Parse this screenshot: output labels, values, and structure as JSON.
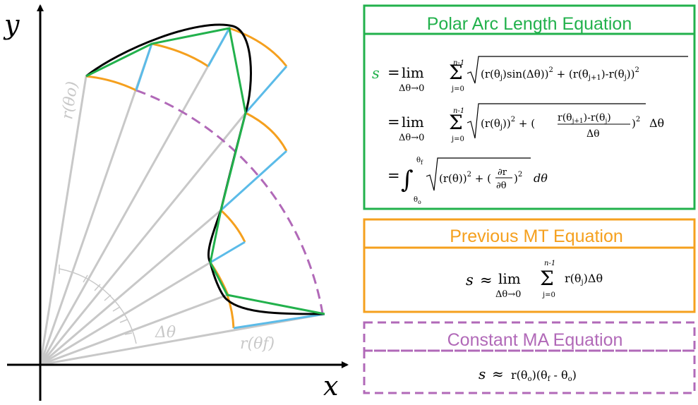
{
  "colors": {
    "green": "#22b14c",
    "orange": "#f5a01e",
    "blue": "#5bbbe8",
    "purple": "#b169b8",
    "gray": "#c8c8c8",
    "black": "#000000"
  },
  "plot": {
    "x_axis_label": "x",
    "y_axis_label": "y",
    "r_theta_o_label": "r(θo)",
    "r_theta_f_label": "r(θf)",
    "delta_theta_label": "Δθ"
  },
  "boxes": [
    {
      "title": "Polar Arc Length Equation",
      "color": "#22b14c",
      "style": "solid",
      "lines": [
        "s = lim(Δθ→0) Σ(j=0..n-1) √[ (r(θj) sin(Δθ))² + (r(θj+1) - r(θj))² ]",
        "= lim(Δθ→0) Σ(j=0..n-1) √[ (r(θj))² + ((r(θj+1) - r(θj)) / Δθ)² ] Δθ",
        "= ∫(θo..θf) √[ (r(θ))² + (∂r/∂θ)² ] dθ"
      ]
    },
    {
      "title": "Previous MT Equation",
      "color": "#f5a01e",
      "style": "solid",
      "lines": [
        "s ≈ lim(Δθ→0) Σ(j=0..n-1) r(θj)Δθ"
      ]
    },
    {
      "title": "Constant MA Equation",
      "color": "#b169b8",
      "style": "dashed",
      "lines": [
        "s ≈ r(θo)(θf - θo)"
      ]
    }
  ]
}
